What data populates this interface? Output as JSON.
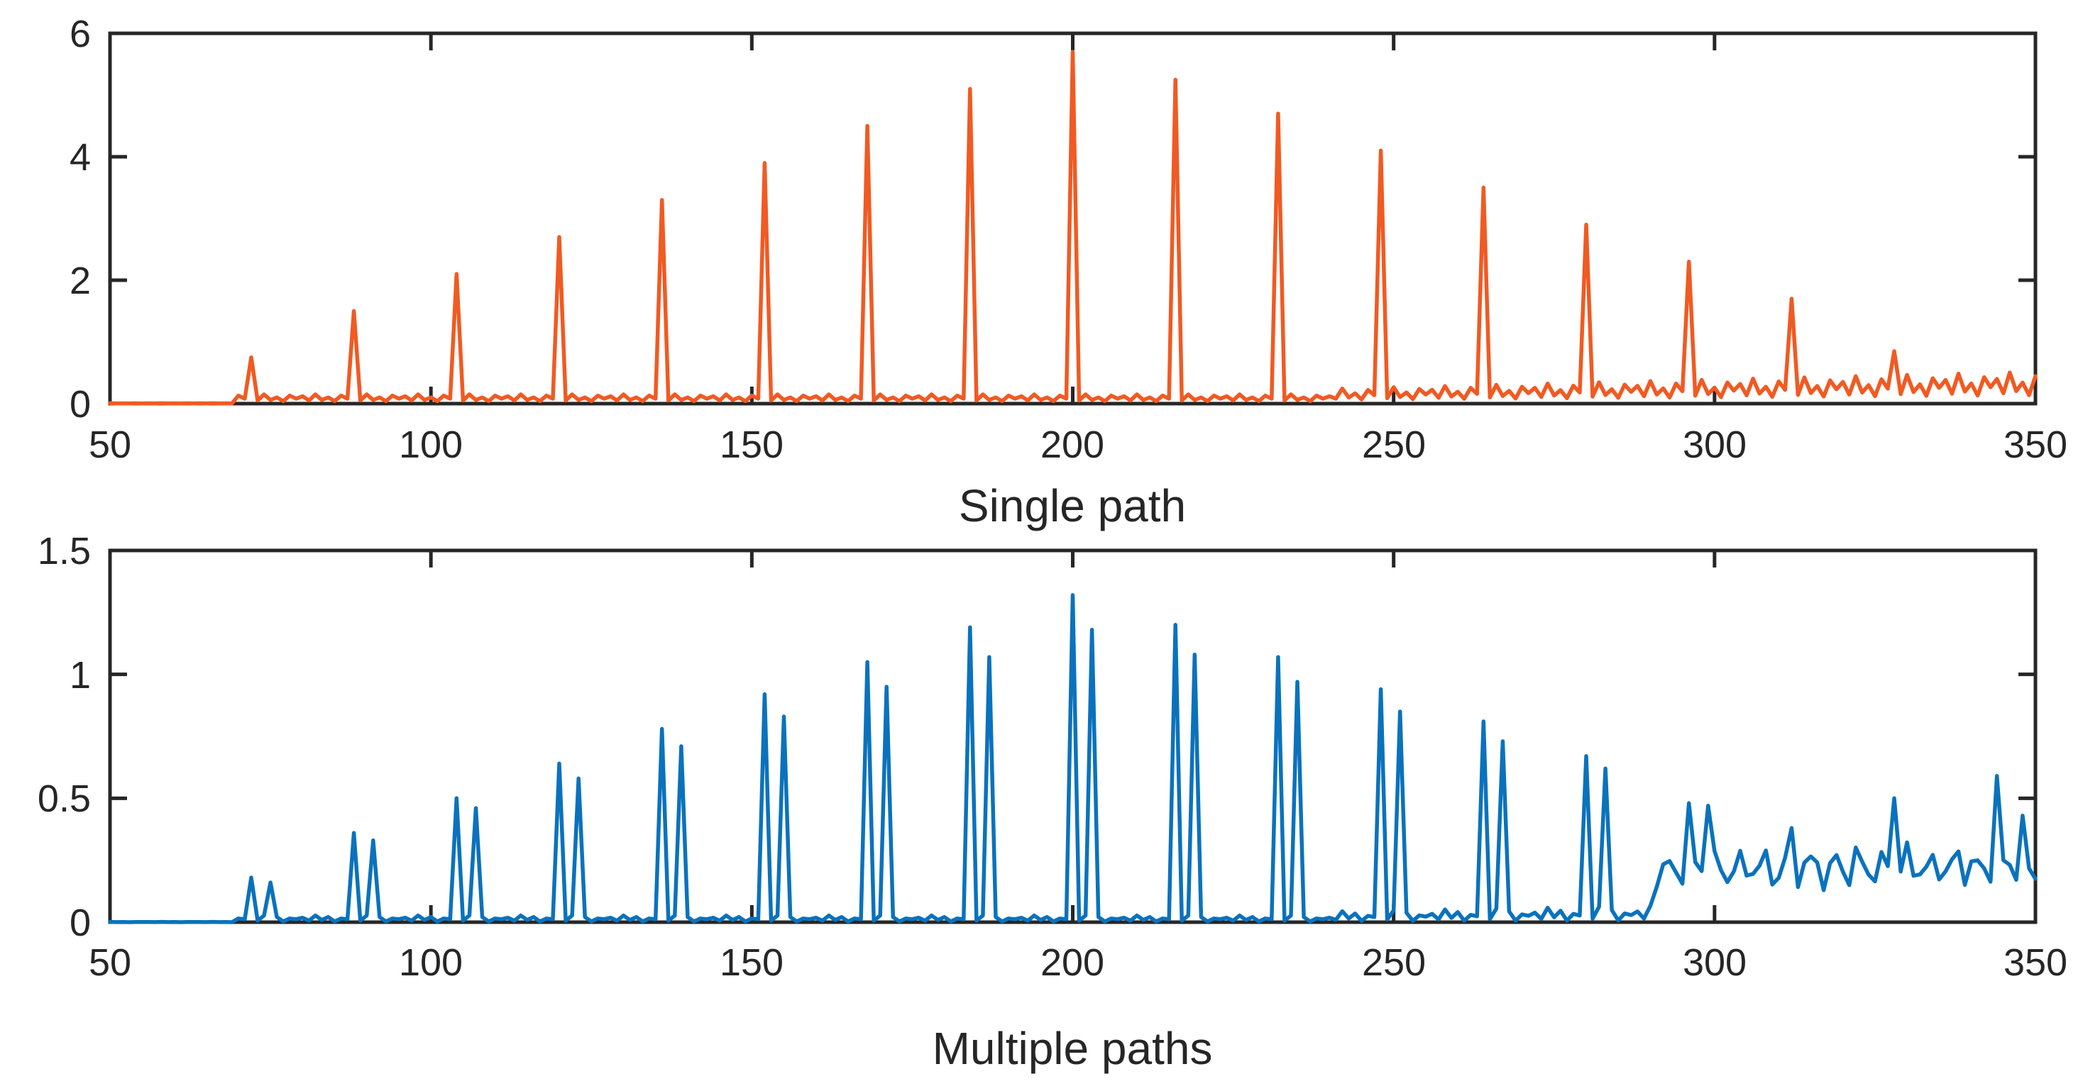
{
  "colors": {
    "single": "#f15a22",
    "multiple": "#0a72bd",
    "axis": "#262626"
  },
  "chart_data": [
    {
      "type": "line",
      "name": "top-panel",
      "xlabel": "Single path",
      "ylabel": "",
      "xlim": [
        50,
        350
      ],
      "ylim": [
        0,
        6
      ],
      "xticks": [
        50,
        100,
        150,
        200,
        250,
        300,
        350
      ],
      "yticks": [
        0,
        2,
        4,
        6
      ],
      "xtick_labels": [
        "50",
        "100",
        "150",
        "200",
        "250",
        "300",
        "350"
      ],
      "ytick_labels": [
        "0",
        "2",
        "4",
        "6"
      ],
      "series": [
        {
          "name": "Single path",
          "color": "#f15a22",
          "baseline_pattern": [
            0.12,
            0.05,
            0.15,
            0.06,
            0.1,
            0.04,
            0.13,
            0.08
          ],
          "peaks": [
            {
              "x": 72,
              "y": 0.75
            },
            {
              "x": 88,
              "y": 1.5
            },
            {
              "x": 104,
              "y": 2.1
            },
            {
              "x": 120,
              "y": 2.7
            },
            {
              "x": 136,
              "y": 3.3
            },
            {
              "x": 152,
              "y": 3.9
            },
            {
              "x": 168,
              "y": 4.5
            },
            {
              "x": 184,
              "y": 5.1
            },
            {
              "x": 200,
              "y": 5.7
            },
            {
              "x": 216,
              "y": 5.25
            },
            {
              "x": 232,
              "y": 4.7
            },
            {
              "x": 248,
              "y": 4.1
            },
            {
              "x": 264,
              "y": 3.5
            },
            {
              "x": 280,
              "y": 2.9
            },
            {
              "x": 296,
              "y": 2.3
            },
            {
              "x": 312,
              "y": 1.7
            },
            {
              "x": 328,
              "y": 0.85
            }
          ]
        }
      ]
    },
    {
      "type": "line",
      "name": "bottom-panel",
      "xlabel": "Multiple paths",
      "ylabel": "",
      "xlim": [
        50,
        350
      ],
      "ylim": [
        0,
        1.5
      ],
      "xticks": [
        50,
        100,
        150,
        200,
        250,
        300,
        350
      ],
      "yticks": [
        0,
        0.5,
        1,
        1.5
      ],
      "xtick_labels": [
        "50",
        "100",
        "150",
        "200",
        "250",
        "300",
        "350"
      ],
      "ytick_labels": [
        "0",
        "0.5",
        "1",
        "1.5"
      ],
      "series": [
        {
          "name": "Multiple paths",
          "color": "#0a72bd",
          "baseline_pattern": [
            0.06,
            0.02,
            0.09,
            0.03,
            0.07,
            0.01,
            0.05,
            0.04
          ],
          "peaks": [
            {
              "x": 72,
              "y": 0.18
            },
            {
              "x": 75,
              "y": 0.16
            },
            {
              "x": 88,
              "y": 0.36
            },
            {
              "x": 91,
              "y": 0.33
            },
            {
              "x": 104,
              "y": 0.5
            },
            {
              "x": 107,
              "y": 0.46
            },
            {
              "x": 120,
              "y": 0.64
            },
            {
              "x": 123,
              "y": 0.58
            },
            {
              "x": 136,
              "y": 0.78
            },
            {
              "x": 139,
              "y": 0.71
            },
            {
              "x": 152,
              "y": 0.92
            },
            {
              "x": 155,
              "y": 0.83
            },
            {
              "x": 168,
              "y": 1.05
            },
            {
              "x": 171,
              "y": 0.95
            },
            {
              "x": 184,
              "y": 1.19
            },
            {
              "x": 187,
              "y": 1.07
            },
            {
              "x": 200,
              "y": 1.32
            },
            {
              "x": 203,
              "y": 1.18
            },
            {
              "x": 216,
              "y": 1.2
            },
            {
              "x": 219,
              "y": 1.08
            },
            {
              "x": 232,
              "y": 1.07
            },
            {
              "x": 235,
              "y": 0.97
            },
            {
              "x": 248,
              "y": 0.94
            },
            {
              "x": 251,
              "y": 0.85
            },
            {
              "x": 264,
              "y": 0.81
            },
            {
              "x": 267,
              "y": 0.73
            },
            {
              "x": 280,
              "y": 0.67
            },
            {
              "x": 283,
              "y": 0.62
            },
            {
              "x": 296,
              "y": 0.48
            },
            {
              "x": 299,
              "y": 0.47
            },
            {
              "x": 312,
              "y": 0.38
            },
            {
              "x": 328,
              "y": 0.5
            },
            {
              "x": 344,
              "y": 0.59
            },
            {
              "x": 348,
              "y": 0.43
            }
          ]
        }
      ]
    }
  ]
}
